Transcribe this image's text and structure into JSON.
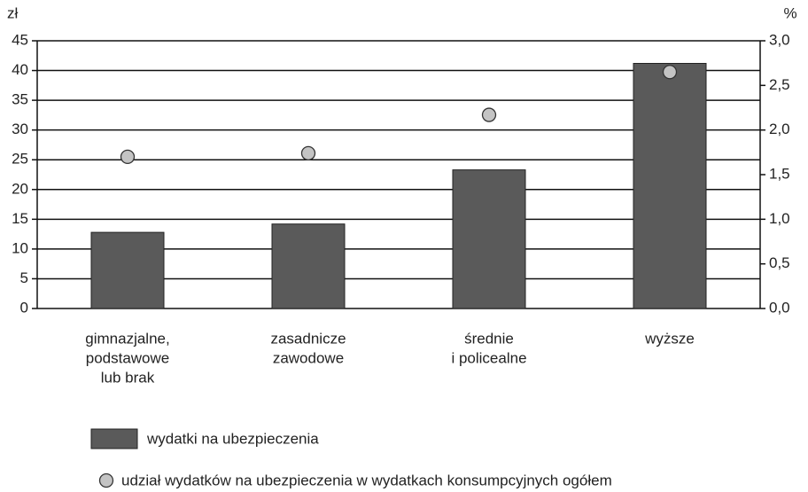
{
  "chart_data": {
    "type": "bar",
    "y_unit": "zł",
    "y2_unit": "%",
    "categories": [
      [
        "gimnazjalne,",
        "podstawowe",
        "lub brak"
      ],
      [
        "zasadnicze",
        "zawodowe"
      ],
      [
        "średnie",
        "i policealne"
      ],
      [
        "wyższe"
      ]
    ],
    "series": [
      {
        "name": "wydatki na ubezpieczenia",
        "type": "bar",
        "color": "#5a5a5a",
        "values": [
          12.8,
          14.2,
          23.3,
          41.2
        ]
      },
      {
        "name": "udział wydatków na ubezpieczenia w wydatkach konsumpcyjnych ogółem",
        "type": "scatter",
        "axis": "y2",
        "color": "#c4c4c4",
        "values": [
          1.7,
          1.74,
          2.17,
          2.65
        ]
      }
    ],
    "ylim": [
      0,
      45
    ],
    "yticks": [
      0,
      5,
      10,
      15,
      20,
      25,
      30,
      35,
      40,
      45
    ],
    "y2lim": [
      0,
      3.0
    ],
    "y2ticks": [
      {
        "value": 0,
        "label": "0,0"
      },
      {
        "value": 0.5,
        "label": "0,5"
      },
      {
        "value": 1.0,
        "label": "1,0"
      },
      {
        "value": 1.5,
        "label": "1,5"
      },
      {
        "value": 2.0,
        "label": "2,0"
      },
      {
        "value": 2.5,
        "label": "2,5"
      },
      {
        "value": 3.0,
        "label": "3,0"
      }
    ],
    "grid": true
  }
}
